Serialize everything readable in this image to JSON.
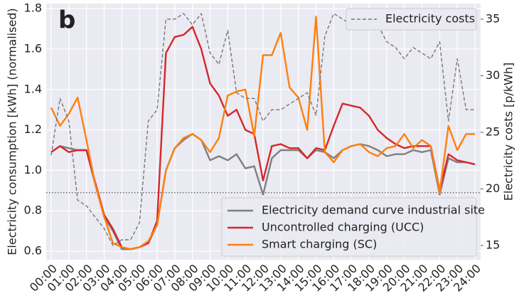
{
  "chart_data": {
    "type": "line",
    "panel_label": "b",
    "y_label": "Electricity consumption [kWh] (normalised)",
    "y2_label": "Electricity costs [p/kWh]",
    "x": [
      0,
      0.5,
      1,
      1.5,
      2,
      2.5,
      3,
      3.5,
      4,
      4.5,
      5,
      5.5,
      6,
      6.5,
      7,
      7.5,
      8,
      8.5,
      9,
      9.5,
      10,
      10.5,
      11,
      11.5,
      12,
      12.5,
      13,
      13.5,
      14,
      14.5,
      15,
      15.5,
      16,
      16.5,
      17,
      17.5,
      18,
      18.5,
      19,
      19.5,
      20,
      20.5,
      21,
      21.5,
      22,
      22.5,
      23,
      23.5,
      24
    ],
    "xlim": [
      -0.28,
      24.32
    ],
    "xticks": [
      {
        "value": 0,
        "label": "00:00"
      },
      {
        "value": 1,
        "label": "01:00"
      },
      {
        "value": 2,
        "label": "02:00"
      },
      {
        "value": 3,
        "label": "03:00"
      },
      {
        "value": 4,
        "label": "04:00"
      },
      {
        "value": 5,
        "label": "05:00"
      },
      {
        "value": 6,
        "label": "06:00"
      },
      {
        "value": 7,
        "label": "07:00"
      },
      {
        "value": 8,
        "label": "08:00"
      },
      {
        "value": 9,
        "label": "09:00"
      },
      {
        "value": 10,
        "label": "10:00"
      },
      {
        "value": 11,
        "label": "11:00"
      },
      {
        "value": 12,
        "label": "12:00"
      },
      {
        "value": 13,
        "label": "13:00"
      },
      {
        "value": 14,
        "label": "14:00"
      },
      {
        "value": 15,
        "label": "15:00"
      },
      {
        "value": 16,
        "label": "16:00"
      },
      {
        "value": 17,
        "label": "17:00"
      },
      {
        "value": 18,
        "label": "18:00"
      },
      {
        "value": 19,
        "label": "19:00"
      },
      {
        "value": 20,
        "label": "20:00"
      },
      {
        "value": 21,
        "label": "21:00"
      },
      {
        "value": 22,
        "label": "22:00"
      },
      {
        "value": 23,
        "label": "23:00"
      },
      {
        "value": 24,
        "label": "24:00"
      }
    ],
    "ylim": [
      0.558,
      1.825
    ],
    "yticks": [
      0.6,
      0.8,
      {
        "value": 1,
        "label": "1.0"
      },
      1.2,
      1.4,
      1.6,
      1.8
    ],
    "y2lim": [
      13.74,
      36.38
    ],
    "y2ticks": [
      15,
      20,
      25,
      30,
      35
    ],
    "grid": true,
    "reference_line": 0.89,
    "series": [
      {
        "name": "Electricity demand curve industrial site",
        "color": "#7f7f7f",
        "values": [
          1.09,
          1.12,
          1.11,
          1.1,
          1.1,
          0.93,
          0.77,
          0.7,
          0.61,
          0.61,
          0.62,
          0.64,
          0.73,
          1.0,
          1.11,
          1.15,
          1.18,
          1.15,
          1.05,
          1.07,
          1.05,
          1.08,
          1.01,
          1.02,
          0.88,
          1.06,
          1.1,
          1.1,
          1.1,
          1.06,
          1.1,
          1.09,
          1.06,
          1.1,
          1.12,
          1.13,
          1.12,
          1.1,
          1.07,
          1.08,
          1.08,
          1.1,
          1.09,
          1.1,
          0.88,
          1.06,
          1.04,
          1.04,
          1.03
        ]
      },
      {
        "name": "Uncontrolled charging (UCC)",
        "color": "#d62728",
        "values": [
          1.09,
          1.12,
          1.09,
          1.1,
          1.1,
          0.94,
          0.78,
          0.71,
          0.62,
          0.61,
          0.62,
          0.64,
          0.75,
          1.58,
          1.66,
          1.67,
          1.71,
          1.6,
          1.43,
          1.37,
          1.27,
          1.3,
          1.2,
          1.18,
          0.95,
          1.12,
          1.13,
          1.11,
          1.11,
          1.06,
          1.11,
          1.1,
          1.22,
          1.33,
          1.32,
          1.31,
          1.27,
          1.2,
          1.16,
          1.13,
          1.11,
          1.12,
          1.12,
          1.12,
          0.9,
          1.08,
          1.05,
          1.04,
          1.03
        ]
      },
      {
        "name": "Smart charging (SC)",
        "color": "#ff7f0e",
        "values": [
          1.31,
          1.22,
          1.28,
          1.36,
          1.15,
          0.93,
          0.77,
          0.64,
          0.62,
          0.61,
          0.62,
          0.65,
          0.73,
          1.0,
          1.11,
          1.16,
          1.18,
          1.15,
          1.09,
          1.16,
          1.37,
          1.39,
          1.4,
          1.17,
          1.57,
          1.57,
          1.68,
          1.41,
          1.36,
          1.2,
          1.76,
          1.09,
          1.04,
          1.1,
          1.12,
          1.13,
          1.09,
          1.07,
          1.11,
          1.12,
          1.18,
          1.11,
          1.15,
          1.12,
          0.89,
          1.22,
          1.1,
          1.18,
          1.18
        ]
      },
      {
        "name": "Electricity costs",
        "color": "#777777",
        "axis": "y2",
        "dashed": true,
        "values": [
          23,
          28,
          26,
          19,
          18.5,
          17.5,
          16.5,
          15,
          15.5,
          15.5,
          17,
          26,
          27,
          35,
          35,
          35.5,
          34.5,
          35.5,
          32,
          31,
          34,
          28.5,
          28,
          28,
          26,
          27,
          27,
          27.5,
          28,
          28.5,
          26.5,
          33.5,
          35.5,
          35,
          34.5,
          34.5,
          35,
          34.5,
          33,
          32.5,
          31.5,
          32.5,
          32,
          31.5,
          33,
          26,
          31.5,
          27,
          27
        ]
      }
    ]
  }
}
